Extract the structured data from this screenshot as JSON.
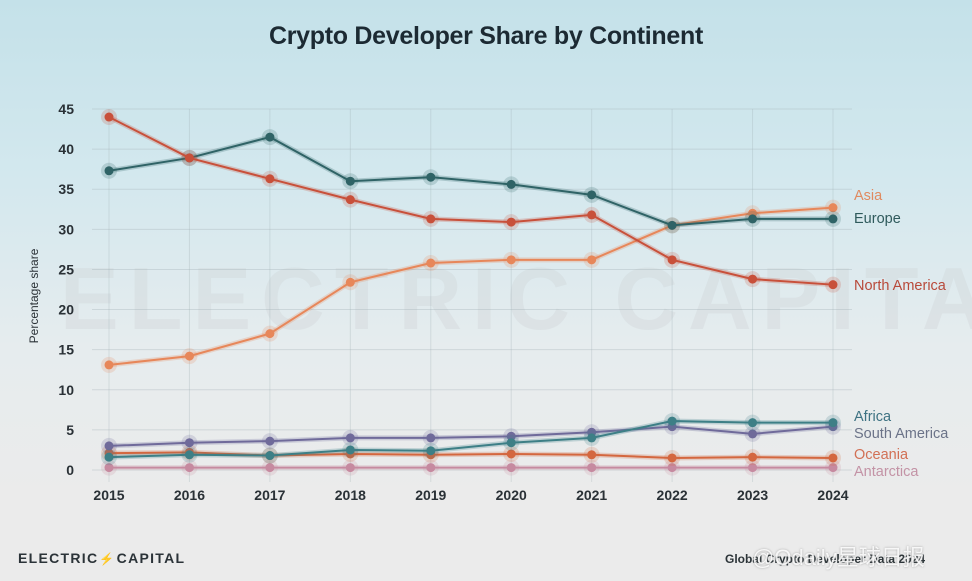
{
  "chart_data": {
    "type": "line",
    "title": "Crypto Developer Share by Continent",
    "xlabel": "",
    "ylabel": "Percentage share",
    "x": [
      2015,
      2016,
      2017,
      2018,
      2019,
      2020,
      2021,
      2022,
      2023,
      2024
    ],
    "ylim": [
      0,
      45
    ],
    "yticks": [
      0,
      5,
      10,
      15,
      20,
      25,
      30,
      35,
      40,
      45
    ],
    "grid": true,
    "legend": "inline-right",
    "series": [
      {
        "name": "North America",
        "color": "#c8503a",
        "values": [
          44.0,
          38.9,
          36.3,
          33.7,
          31.3,
          30.9,
          31.8,
          26.2,
          23.8,
          23.1
        ]
      },
      {
        "name": "Europe",
        "color": "#2f6366",
        "values": [
          37.3,
          38.9,
          41.5,
          36.0,
          36.5,
          35.6,
          34.3,
          30.5,
          31.3,
          31.3
        ]
      },
      {
        "name": "Asia",
        "color": "#e7875a",
        "values": [
          13.1,
          14.2,
          17.0,
          23.4,
          25.8,
          26.2,
          26.2,
          30.5,
          32.0,
          32.7
        ]
      },
      {
        "name": "Africa",
        "color": "#3d7f86",
        "values": [
          1.6,
          1.9,
          1.8,
          2.5,
          2.4,
          3.4,
          4.0,
          6.1,
          5.9,
          5.9
        ]
      },
      {
        "name": "South America",
        "color": "#6f6a9a",
        "values": [
          3.0,
          3.4,
          3.6,
          4.0,
          4.0,
          4.2,
          4.7,
          5.4,
          4.5,
          5.4
        ]
      },
      {
        "name": "Oceania",
        "color": "#d4673f",
        "values": [
          2.1,
          2.2,
          1.8,
          2.0,
          1.9,
          2.0,
          1.9,
          1.5,
          1.6,
          1.5
        ]
      },
      {
        "name": "Antarctica",
        "color": "#c68aa0",
        "values": [
          0.3,
          0.3,
          0.3,
          0.3,
          0.3,
          0.3,
          0.3,
          0.3,
          0.3,
          0.3
        ]
      }
    ],
    "labels_order": [
      "Asia",
      "Europe",
      "North America",
      "Africa",
      "South America",
      "Oceania",
      "Antarctica"
    ]
  },
  "background_watermark": "ELECTRIC CAPITAL",
  "footer": {
    "logo_left": "ELECTRIC",
    "logo_bolt": "⚡",
    "logo_right": "CAPITAL",
    "source": "Global Crypto Developer Data 2024",
    "watermark": "@Odaily星球日报"
  }
}
